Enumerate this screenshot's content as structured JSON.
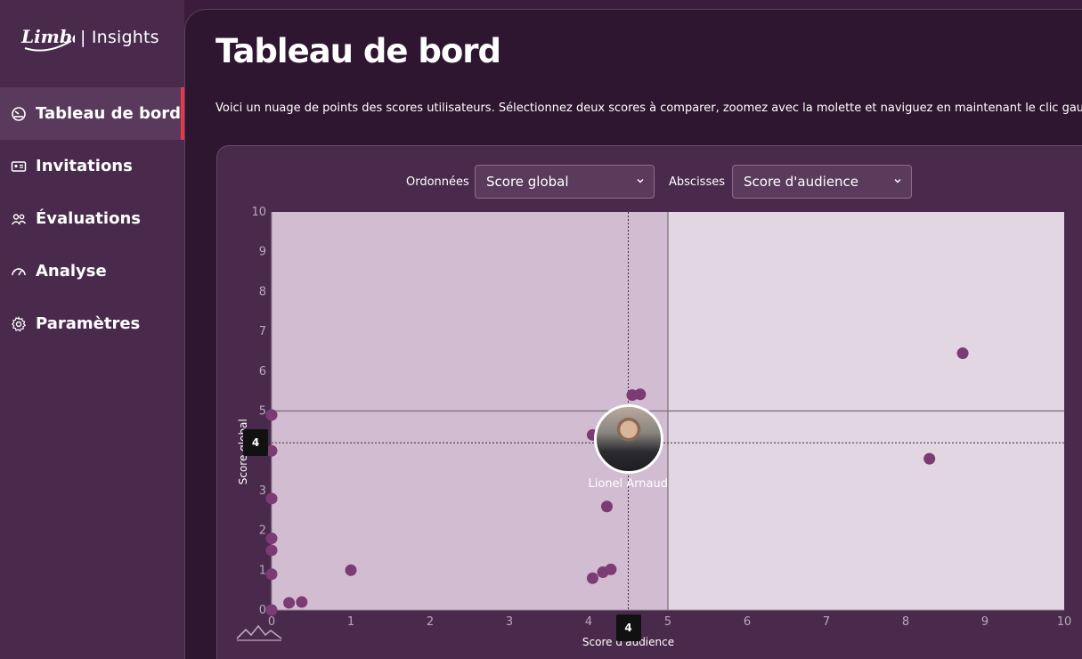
{
  "brand": {
    "logo_text": "Limber",
    "product": "| Insights"
  },
  "sidebar": {
    "items": [
      {
        "label": "Tableau de bord",
        "icon": "gauge-icon",
        "active": true
      },
      {
        "label": "Invitations",
        "icon": "id-card-icon",
        "active": false
      },
      {
        "label": "Évaluations",
        "icon": "users-icon",
        "active": false
      },
      {
        "label": "Analyse",
        "icon": "speedometer-icon",
        "active": false
      },
      {
        "label": "Paramètres",
        "icon": "gear-icon",
        "active": false
      }
    ]
  },
  "main": {
    "title": "Tableau de bord",
    "description": "Voici un nuage de points des scores utilisateurs. Sélectionnez deux scores à comparer, zoomez avec la molette et naviguez en maintenant le clic gauche"
  },
  "controls": {
    "y_label": "Ordonnées",
    "y_value": "Score global",
    "x_label": "Abscisses",
    "x_value": "Score d'audience"
  },
  "colors": {
    "accent": "#e63946",
    "point": "#7c3b73",
    "quadrant_left": "#d1bcd1",
    "quadrant_right": "#e1d6e1"
  },
  "chart_data": {
    "type": "scatter",
    "xlabel": "Score d'audience",
    "ylabel": "Score global",
    "xlim": [
      0,
      10
    ],
    "ylim": [
      0,
      10
    ],
    "x_ticks": [
      "0",
      "1",
      "2",
      "3",
      "4",
      "5",
      "6",
      "7",
      "8",
      "9",
      "10"
    ],
    "y_ticks": [
      "0",
      "1",
      "2",
      "3",
      "4",
      "5",
      "6",
      "7",
      "8",
      "9",
      "10"
    ],
    "threshold_x": 5,
    "threshold_y": 5,
    "crosshair": {
      "x": 4.5,
      "y": 4.2,
      "x_label": "4",
      "y_label": "4"
    },
    "highlight": {
      "name": "Lionel Arnaud",
      "x": 4.5,
      "y": 4.3
    },
    "points": [
      {
        "x": 0.0,
        "y": 4.9
      },
      {
        "x": 0.0,
        "y": 4.0
      },
      {
        "x": 0.0,
        "y": 2.8
      },
      {
        "x": 0.0,
        "y": 1.8
      },
      {
        "x": 0.0,
        "y": 1.5
      },
      {
        "x": 0.0,
        "y": 0.9
      },
      {
        "x": 0.0,
        "y": 0.0
      },
      {
        "x": 0.22,
        "y": 0.18
      },
      {
        "x": 0.38,
        "y": 0.2
      },
      {
        "x": 1.0,
        "y": 1.0
      },
      {
        "x": 4.05,
        "y": 0.8
      },
      {
        "x": 4.18,
        "y": 0.95
      },
      {
        "x": 4.28,
        "y": 1.02
      },
      {
        "x": 4.23,
        "y": 2.6
      },
      {
        "x": 4.05,
        "y": 4.4
      },
      {
        "x": 4.55,
        "y": 5.4
      },
      {
        "x": 4.65,
        "y": 5.42
      },
      {
        "x": 8.3,
        "y": 3.8
      },
      {
        "x": 8.72,
        "y": 6.45
      }
    ]
  }
}
